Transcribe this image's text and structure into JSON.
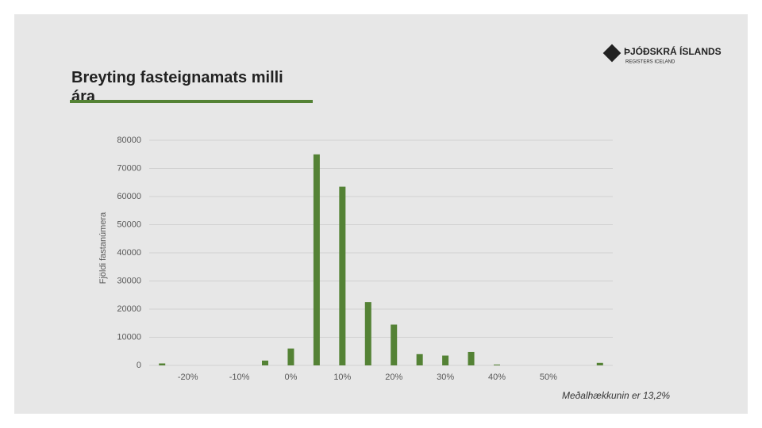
{
  "logo": {
    "name": "ÞJÓÐSKRÁ ÍSLANDS",
    "subtitle": "REGISTERS ICELAND"
  },
  "chart_data": {
    "type": "bar",
    "title": "Breyting fasteignamats milli ára",
    "y_label": "Fjöldi fastanúmera",
    "annotation": "Meðalhækkunin er 13,2%",
    "categories": [
      null,
      "-20%",
      null,
      "-10%",
      null,
      "0%",
      null,
      "10%",
      null,
      "20%",
      null,
      "30%",
      null,
      "40%",
      null,
      "50%",
      null,
      null
    ],
    "values": [
      700,
      0,
      0,
      0,
      1700,
      6000,
      75000,
      63500,
      22500,
      14500,
      4000,
      3500,
      4800,
      300,
      0,
      0,
      0,
      900
    ],
    "color": "#548235",
    "ylim": [
      0,
      80000
    ],
    "yticks": [
      0,
      10000,
      20000,
      30000,
      40000,
      50000,
      60000,
      70000,
      80000
    ],
    "grid": true
  }
}
